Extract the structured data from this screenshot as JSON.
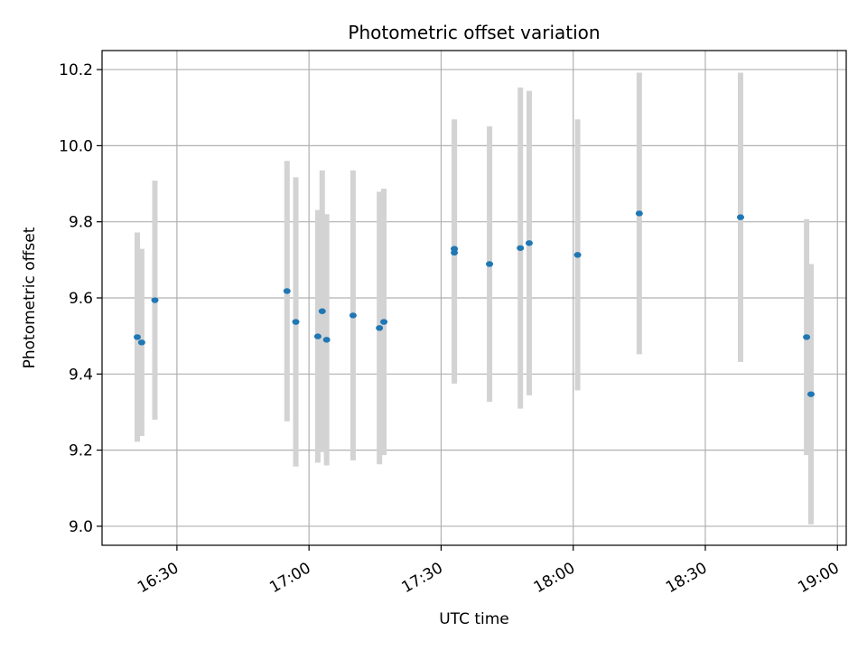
{
  "chart_data": {
    "type": "scatter",
    "title": "Photometric offset variation",
    "xlabel": "UTC time",
    "ylabel": "Photometric offset",
    "grid": true,
    "x_axis_type": "time",
    "xlim": [
      "16:13",
      "19:02"
    ],
    "ylim": [
      8.95,
      10.25
    ],
    "x_ticks": [
      "16:30",
      "17:00",
      "17:30",
      "18:00",
      "18:30",
      "19:00"
    ],
    "y_ticks": [
      "9.0",
      "9.2",
      "9.4",
      "9.6",
      "9.8",
      "10.0",
      "10.2"
    ],
    "colors": {
      "points": "#1f77b4",
      "errorbars": "#d3d3d3",
      "grid": "#b0b0b0"
    },
    "points": [
      {
        "x": "16:21",
        "y": 9.497,
        "err_low": 9.222,
        "err_high": 9.772
      },
      {
        "x": "16:22",
        "y": 9.483,
        "err_low": 9.237,
        "err_high": 9.729
      },
      {
        "x": "16:25",
        "y": 9.594,
        "err_low": 9.28,
        "err_high": 9.908
      },
      {
        "x": "16:55",
        "y": 9.618,
        "err_low": 9.276,
        "err_high": 9.96
      },
      {
        "x": "16:57",
        "y": 9.537,
        "err_low": 9.157,
        "err_high": 9.917
      },
      {
        "x": "17:02",
        "y": 9.499,
        "err_low": 9.167,
        "err_high": 9.831
      },
      {
        "x": "17:03",
        "y": 9.565,
        "err_low": 9.195,
        "err_high": 9.935
      },
      {
        "x": "17:04",
        "y": 9.49,
        "err_low": 9.16,
        "err_high": 9.82
      },
      {
        "x": "17:10",
        "y": 9.554,
        "err_low": 9.173,
        "err_high": 9.935
      },
      {
        "x": "17:16",
        "y": 9.521,
        "err_low": 9.163,
        "err_high": 9.879
      },
      {
        "x": "17:17",
        "y": 9.537,
        "err_low": 9.187,
        "err_high": 9.887
      },
      {
        "x": "17:33",
        "y": 9.719,
        "err_low": 9.375,
        "err_high": 10.063
      },
      {
        "x": "17:33",
        "y": 9.729,
        "err_low": 9.389,
        "err_high": 10.069
      },
      {
        "x": "17:41",
        "y": 9.689,
        "err_low": 9.327,
        "err_high": 10.051
      },
      {
        "x": "17:48",
        "y": 9.731,
        "err_low": 9.309,
        "err_high": 10.153
      },
      {
        "x": "17:50",
        "y": 9.744,
        "err_low": 9.344,
        "err_high": 10.144
      },
      {
        "x": "18:01",
        "y": 9.713,
        "err_low": 9.357,
        "err_high": 10.069
      },
      {
        "x": "18:15",
        "y": 9.822,
        "err_low": 9.452,
        "err_high": 10.192
      },
      {
        "x": "18:38",
        "y": 9.812,
        "err_low": 9.432,
        "err_high": 10.192
      },
      {
        "x": "18:53",
        "y": 9.497,
        "err_low": 9.187,
        "err_high": 9.807
      },
      {
        "x": "18:54",
        "y": 9.347,
        "err_low": 9.005,
        "err_high": 9.689
      }
    ]
  }
}
